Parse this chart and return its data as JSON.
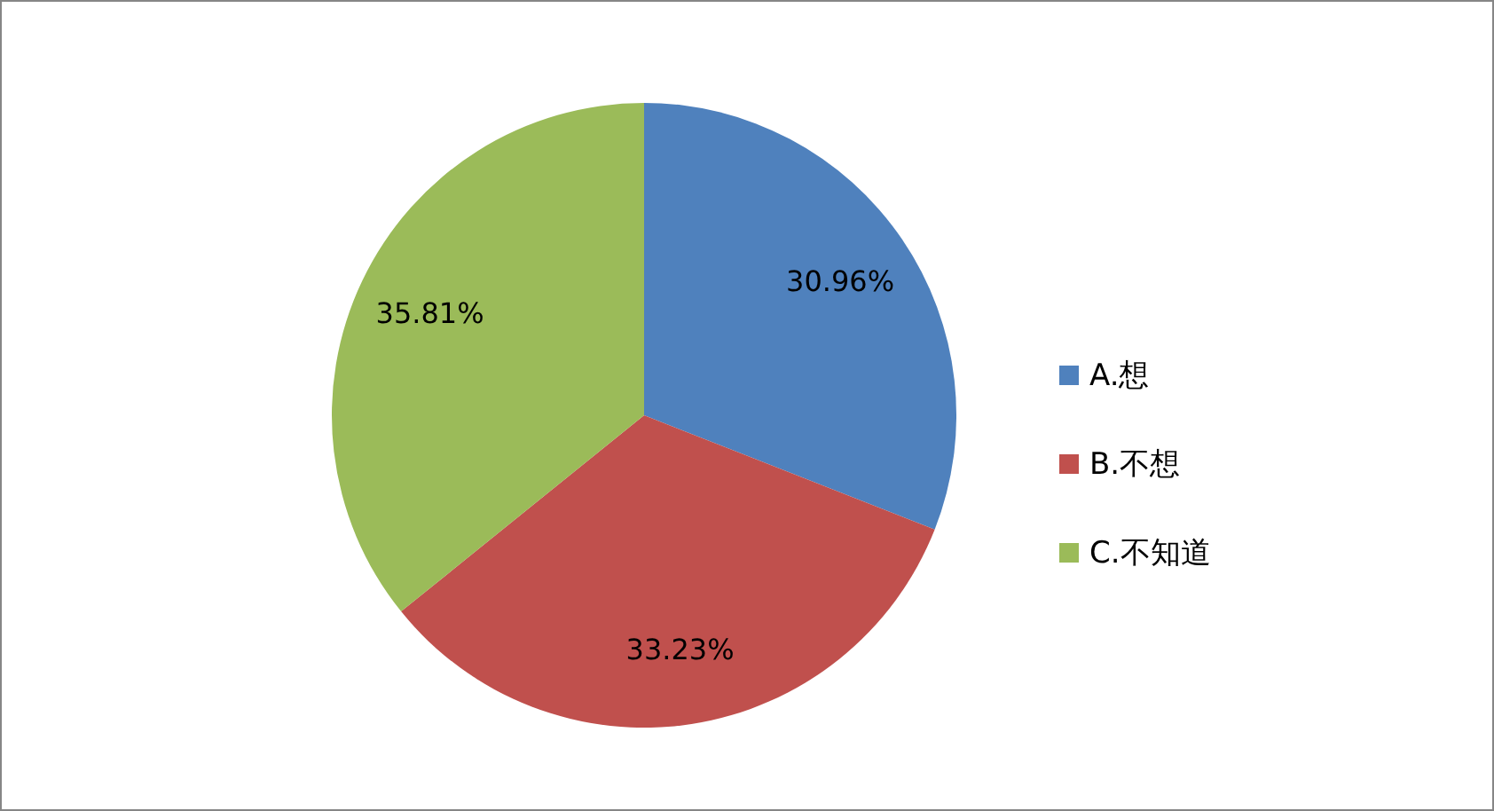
{
  "chart_data": {
    "type": "pie",
    "categories": [
      "A.想",
      "B.不想",
      "C.不知道"
    ],
    "values": [
      30.96,
      33.23,
      35.81
    ],
    "colors": [
      "#4f81bd",
      "#c0504d",
      "#9bbb59"
    ],
    "value_labels": [
      "30.96%",
      "33.23%",
      "35.81%"
    ],
    "legend": "right"
  }
}
